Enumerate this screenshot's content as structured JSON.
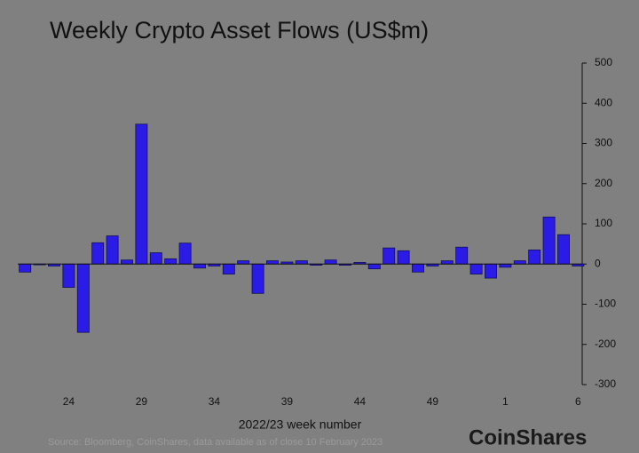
{
  "chart_data": {
    "type": "bar",
    "title": "Weekly Crypto Asset Flows (US$m)",
    "x_label": "2022/23 week number",
    "source": "Source: Bloomberg, CoinShares, data available as of close 10 February 2023",
    "brand": "CoinShares",
    "categories": [
      null,
      null,
      null,
      "24",
      null,
      null,
      null,
      null,
      "29",
      null,
      null,
      null,
      null,
      "34",
      null,
      null,
      null,
      null,
      "39",
      null,
      null,
      null,
      null,
      "44",
      null,
      null,
      null,
      null,
      "49",
      null,
      null,
      null,
      null,
      "1",
      null,
      null,
      null,
      null,
      "6"
    ],
    "values": [
      -20,
      -2,
      -5,
      -58,
      -170,
      53,
      70,
      10,
      348,
      28,
      13,
      52,
      -10,
      -5,
      -25,
      8,
      -73,
      8,
      5,
      8,
      -3,
      10,
      -3,
      4,
      -12,
      40,
      33,
      -20,
      -5,
      8,
      42,
      -25,
      -35,
      -8,
      8,
      35,
      117,
      73,
      -5
    ],
    "color": "#2b1be6",
    "ylim": [
      -300,
      500
    ],
    "yticks": [
      -300,
      -200,
      -100,
      0,
      100,
      200,
      300,
      400,
      500
    ],
    "axis_side": "right"
  }
}
